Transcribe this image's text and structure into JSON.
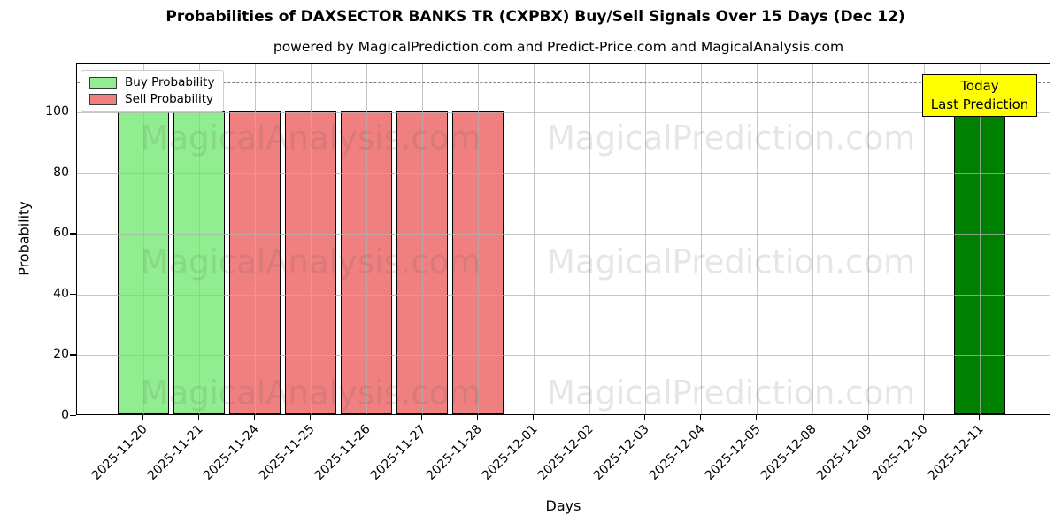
{
  "header": {
    "title": "Probabilities of DAXSECTOR BANKS TR (CXPBX) Buy/Sell Signals Over 15 Days (Dec 12)",
    "subtitle": "powered by MagicalPrediction.com and Predict-Price.com and MagicalAnalysis.com"
  },
  "legend": {
    "items": [
      {
        "label": "Buy Probability",
        "color": "#90ee90"
      },
      {
        "label": "Sell Probability",
        "color": "#f08080"
      }
    ]
  },
  "annotation_box": {
    "line1": "Today",
    "line2": "Last Prediction",
    "bg_color": "#ffff00"
  },
  "watermarks": {
    "left_text": "MagicalAnalysis.com",
    "right_text": "MagicalPrediction.com"
  },
  "colors": {
    "buy_bar": "#90ee90",
    "sell_bar": "#f08080",
    "today_bar": "#008000",
    "bar_edge": "#000000",
    "grid": "#b2b2b2",
    "dashed_line": "#7f7f7f",
    "annotation_bg": "#ffff00"
  },
  "chart_data": {
    "type": "bar",
    "title": "Probabilities of DAXSECTOR BANKS TR (CXPBX) Buy/Sell Signals Over 15 Days (Dec 12)",
    "subtitle": "powered by MagicalPrediction.com and Predict-Price.com and MagicalAnalysis.com",
    "xlabel": "Days",
    "ylabel": "Probability",
    "ylim": [
      0,
      116
    ],
    "yticks": [
      0,
      20,
      40,
      60,
      80,
      100
    ],
    "grid": true,
    "legend_position": "upper left",
    "dashed_threshold_y": 110,
    "categories": [
      "2025-11-20",
      "2025-11-21",
      "2025-11-24",
      "2025-11-25",
      "2025-11-26",
      "2025-11-27",
      "2025-11-28",
      "2025-12-01",
      "2025-12-02",
      "2025-12-03",
      "2025-12-04",
      "2025-12-05",
      "2025-12-08",
      "2025-12-09",
      "2025-12-10",
      "2025-12-11"
    ],
    "series": [
      {
        "name": "Buy Probability",
        "kind": "buy",
        "color": "#90ee90",
        "values": [
          100,
          100,
          0,
          0,
          0,
          0,
          0,
          0,
          0,
          0,
          0,
          0,
          0,
          0,
          0,
          0
        ]
      },
      {
        "name": "Sell Probability",
        "kind": "sell",
        "color": "#f08080",
        "values": [
          0,
          0,
          100,
          100,
          100,
          100,
          100,
          0,
          0,
          0,
          0,
          0,
          0,
          0,
          0,
          0
        ]
      },
      {
        "name": "Today / Last Prediction",
        "kind": "today",
        "color": "#008000",
        "values": [
          0,
          0,
          0,
          0,
          0,
          0,
          0,
          0,
          0,
          0,
          0,
          0,
          0,
          0,
          0,
          100
        ]
      }
    ]
  }
}
